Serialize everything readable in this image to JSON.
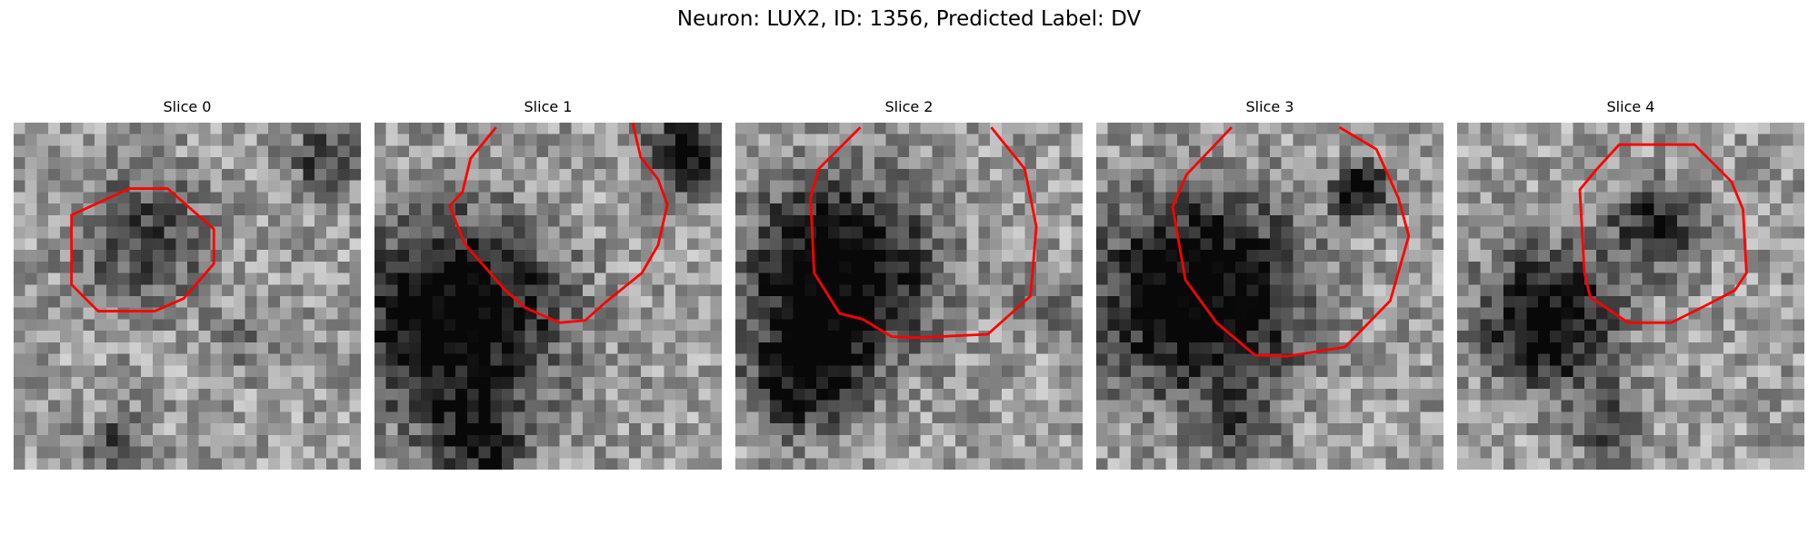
{
  "figure": {
    "title": "Neuron: LUX2, ID: 1356, Predicted Label: DV",
    "contour_color": "#ff0000",
    "colormap": "gray"
  },
  "panels": [
    {
      "title": "Slice 0"
    },
    {
      "title": "Slice 1"
    },
    {
      "title": "Slice 2"
    },
    {
      "title": "Slice 3"
    },
    {
      "title": "Slice 4"
    }
  ]
}
